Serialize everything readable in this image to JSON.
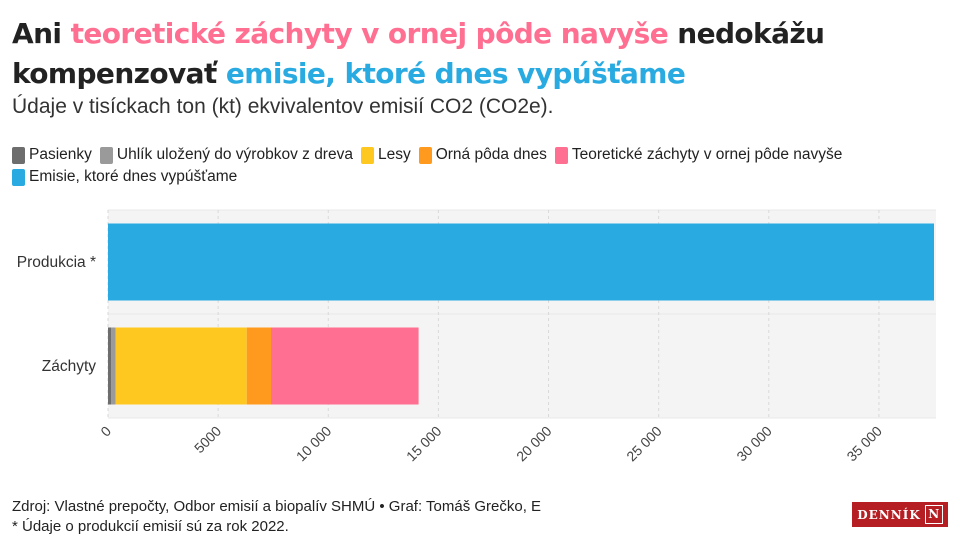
{
  "title": {
    "part1": "Ani ",
    "part2": "teoretické záchyty v ornej pôde navyše",
    "part3": " nedokážu kompenzovať ",
    "part4": "emisie, ktoré dnes vypúšťame"
  },
  "subtitle": "Údaje v tisíckach ton (kt) ekvivalentov emisií CO2 (CO2e).",
  "colors": {
    "pasienky": "#6d6d6d",
    "uhlik": "#9a9a9a",
    "lesy": "#ffc820",
    "orna": "#ff9a1e",
    "teoreticke": "#ff6f91",
    "emisie": "#29abe2",
    "plot_bg": "#f4f4f4",
    "grid": "#d9d9d9"
  },
  "legend": [
    {
      "label": "Pasienky",
      "color": "#6d6d6d"
    },
    {
      "label": "Uhlík uložený do výrobkov z dreva",
      "color": "#9a9a9a"
    },
    {
      "label": "Lesy",
      "color": "#ffc820"
    },
    {
      "label": "Orná pôda dnes",
      "color": "#ff9a1e"
    },
    {
      "label": "Teoretické záchyty v ornej pôde navyše",
      "color": "#ff6f91"
    },
    {
      "label": "Emisie, ktoré dnes vypúšťame",
      "color": "#29abe2"
    }
  ],
  "chart_data": {
    "type": "bar",
    "orientation": "horizontal",
    "stacked": true,
    "categories": [
      "Produkcia *",
      "Záchyty"
    ],
    "series": [
      {
        "name": "Pasienky",
        "values": [
          0,
          150
        ],
        "color": "#6d6d6d"
      },
      {
        "name": "Uhlík uložený do výrobkov z dreva",
        "values": [
          0,
          200
        ],
        "color": "#9a9a9a"
      },
      {
        "name": "Lesy",
        "values": [
          0,
          5950
        ],
        "color": "#ffc820"
      },
      {
        "name": "Orná pôda dnes",
        "values": [
          0,
          1100
        ],
        "color": "#ff9a1e"
      },
      {
        "name": "Teoretické záchyty v ornej pôde navyše",
        "values": [
          0,
          6700
        ],
        "color": "#ff6f91"
      },
      {
        "name": "Emisie, ktoré dnes vypúšťame",
        "values": [
          37500,
          0
        ],
        "color": "#29abe2"
      }
    ],
    "xlim": [
      0,
      37500
    ],
    "xticks": [
      0,
      5000,
      10000,
      15000,
      20000,
      25000,
      30000,
      35000
    ],
    "xtick_labels": [
      "0",
      "5000",
      "10 000",
      "15 000",
      "20 000",
      "25 000",
      "30 000",
      "35 000"
    ],
    "grid": true,
    "legend_position": "top"
  },
  "footer": {
    "source": "Zdroj: Vlastné prepočty, Odbor emisií a biopalív SHMÚ • Graf: Tomáš Grečko, E",
    "note": "* Údaje o produkcií emisií sú za rok 2022."
  },
  "logo": {
    "text": "DENNÍK",
    "letter": "N"
  }
}
